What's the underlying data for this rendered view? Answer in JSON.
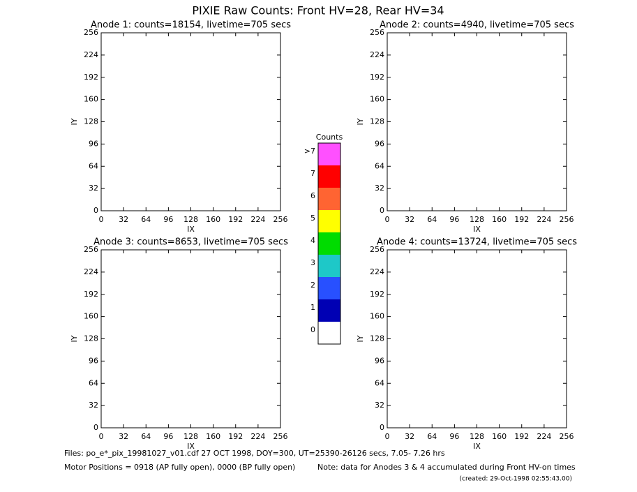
{
  "title": "PIXIE Raw Counts:  Front HV=28, Rear HV=34",
  "chart_data": [
    {
      "type": "heatmap",
      "title": "Anode 1: counts=18154, livetime=705 secs",
      "x_label": "IX",
      "y_label": "IY",
      "xlim": [
        0,
        256
      ],
      "ylim": [
        0,
        256
      ],
      "xticks": [
        0,
        32,
        64,
        96,
        128,
        160,
        192,
        224,
        256
      ],
      "yticks": [
        0,
        32,
        64,
        96,
        128,
        160,
        192,
        224,
        256
      ]
    },
    {
      "type": "heatmap",
      "title": "Anode 2: counts=4940, livetime=705 secs",
      "x_label": "IX",
      "y_label": "IY",
      "xlim": [
        0,
        256
      ],
      "ylim": [
        0,
        256
      ],
      "xticks": [
        0,
        32,
        64,
        96,
        128,
        160,
        192,
        224,
        256
      ],
      "yticks": [
        0,
        32,
        64,
        96,
        128,
        160,
        192,
        224,
        256
      ]
    },
    {
      "type": "heatmap",
      "title": "Anode 3: counts=8653, livetime=705 secs",
      "x_label": "IX",
      "y_label": "IY",
      "xlim": [
        0,
        256
      ],
      "ylim": [
        0,
        256
      ],
      "xticks": [
        0,
        32,
        64,
        96,
        128,
        160,
        192,
        224,
        256
      ],
      "yticks": [
        0,
        32,
        64,
        96,
        128,
        160,
        192,
        224,
        256
      ]
    },
    {
      "type": "heatmap",
      "title": "Anode 4: counts=13724, livetime=705 secs",
      "x_label": "IX",
      "y_label": "IY",
      "xlim": [
        0,
        256
      ],
      "ylim": [
        0,
        256
      ],
      "xticks": [
        0,
        32,
        64,
        96,
        128,
        160,
        192,
        224,
        256
      ],
      "yticks": [
        0,
        32,
        64,
        96,
        128,
        160,
        192,
        224,
        256
      ]
    }
  ],
  "colorbar": {
    "title": "Counts",
    "levels": [
      0,
      1,
      2,
      3,
      4,
      5,
      6,
      7,
      {
        "value": 8,
        "label": ">7"
      }
    ],
    "colors": [
      "#ffffff",
      "#0000b4",
      "#2850ff",
      "#1ec8c8",
      "#00dc00",
      "#ffff00",
      "#ff6432",
      "#ff0000",
      "#ff50ff"
    ]
  },
  "footer": {
    "files": "Files: po_e*_pix_19981027_v01.cdf   27 OCT 1998, DOY=300, UT=25390-26126 secs,  7.05- 7.26 hrs",
    "motor": "Motor Positions = 0918 (AP fully open), 0000 (BP fully open)",
    "note": "Note: data for Anodes 3 & 4 accumulated during Front HV-on times",
    "created": "(created: 29-Oct-1998 02:55:43.00)"
  }
}
